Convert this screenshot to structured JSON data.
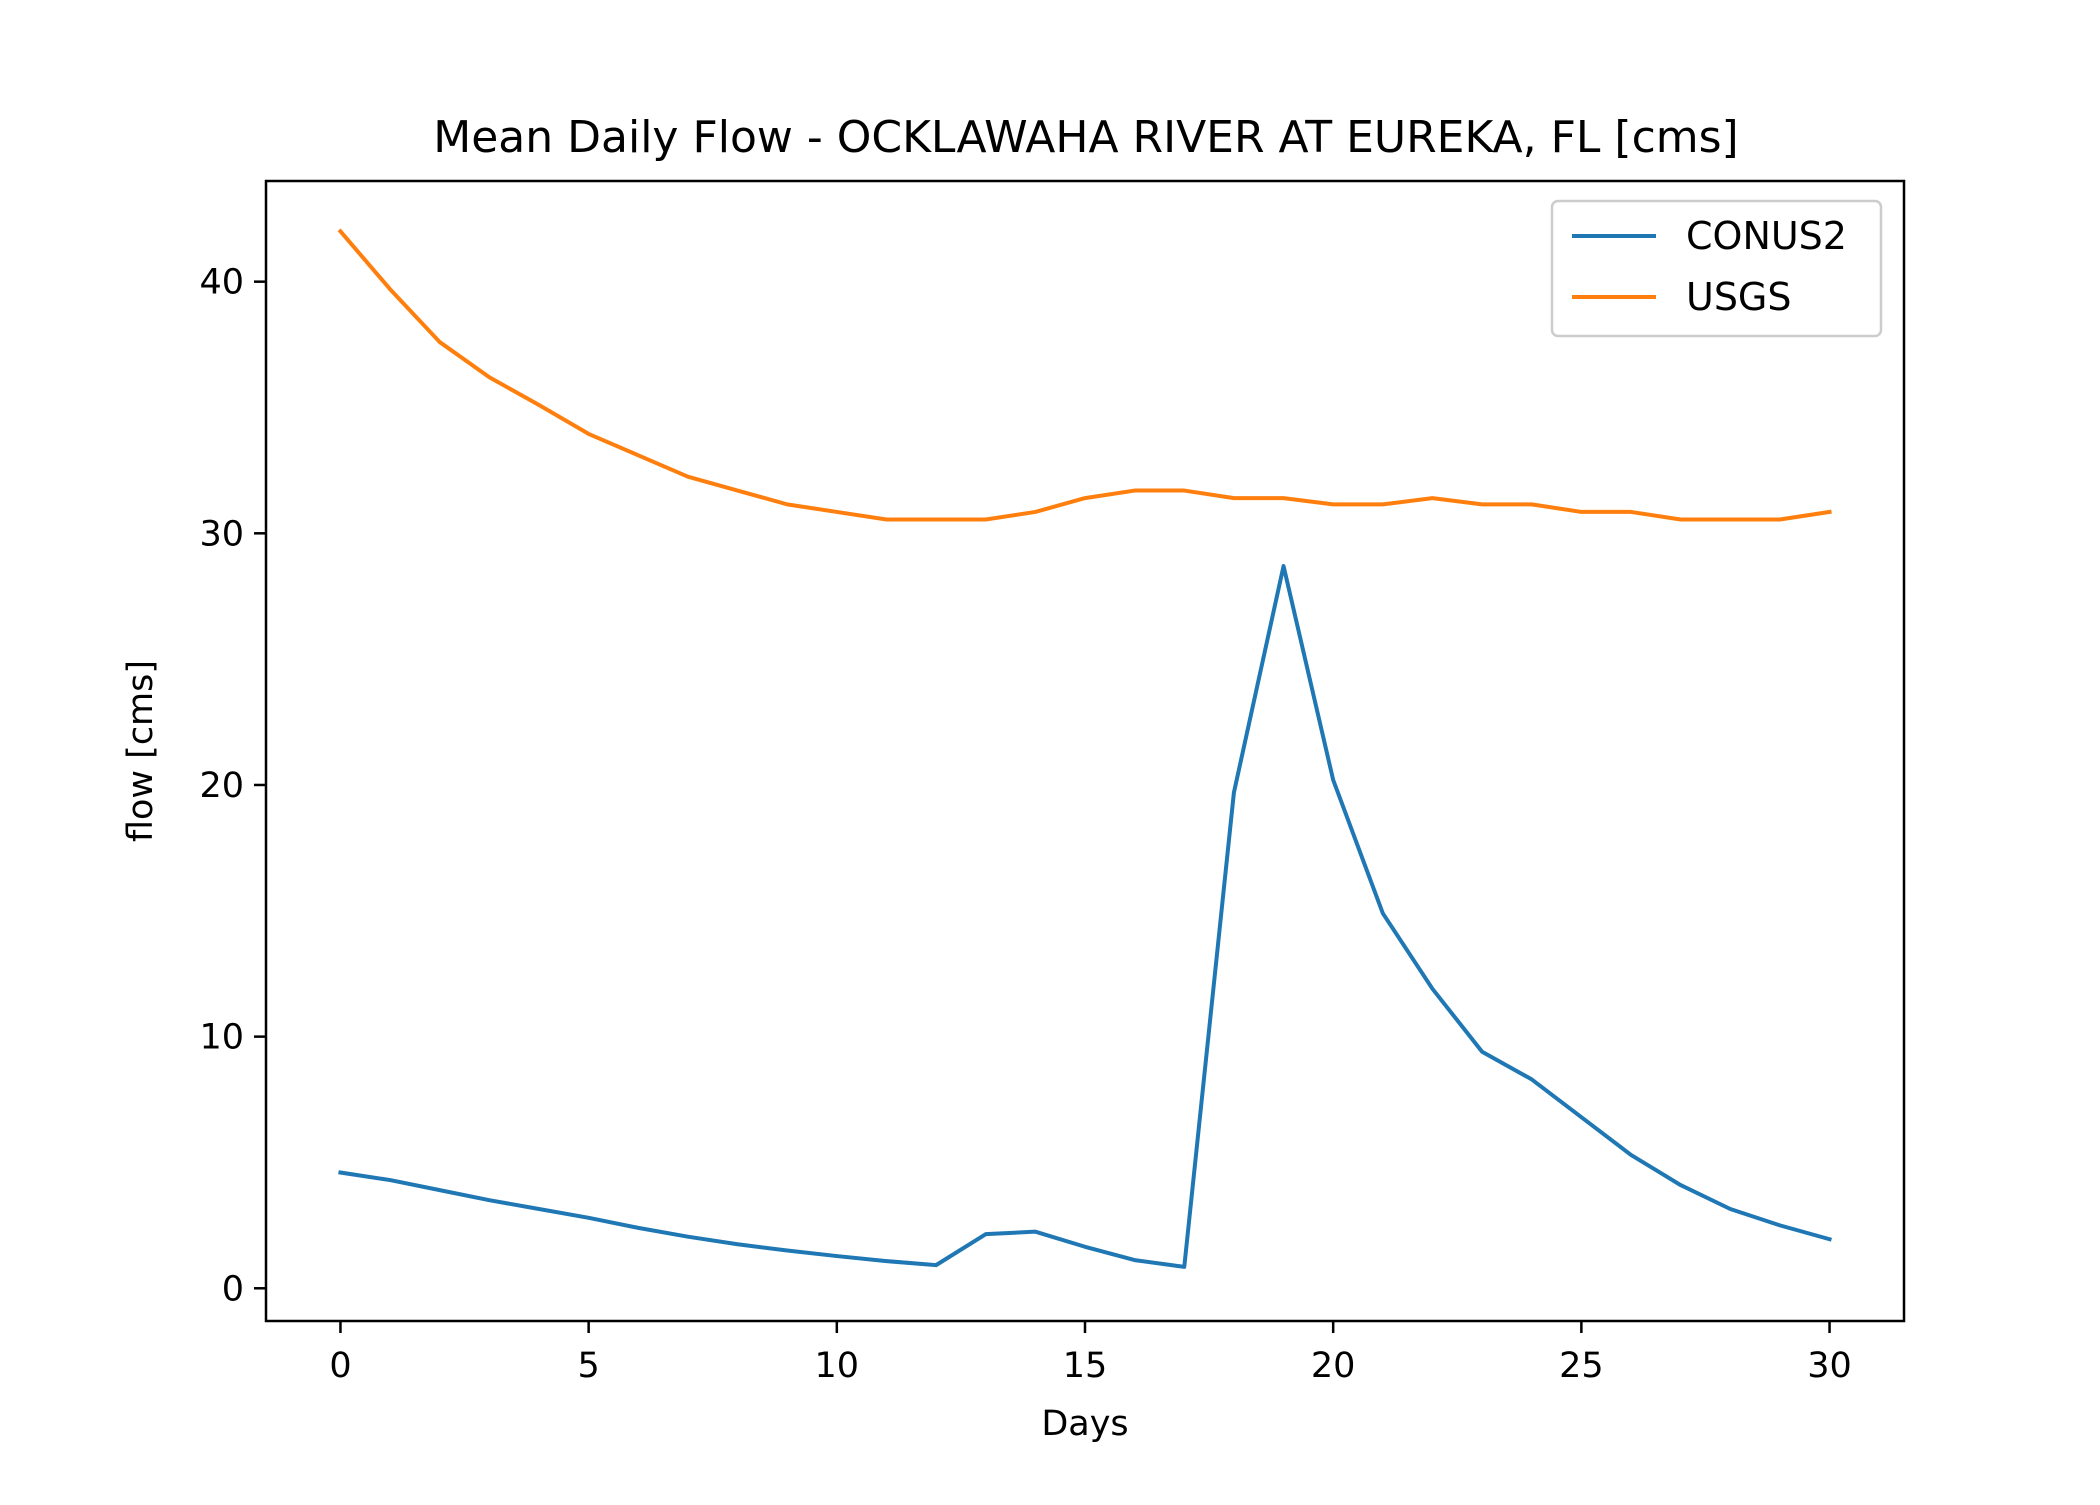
{
  "chart_data": {
    "type": "line",
    "title": "Mean Daily Flow - OCKLAWAHA RIVER AT EUREKA, FL [cms]",
    "xlabel": "Days",
    "ylabel": "flow [cms]",
    "xlim": [
      -1.5,
      31.5
    ],
    "ylim": [
      -1.3,
      44
    ],
    "xticks": [
      0,
      5,
      10,
      15,
      20,
      25,
      30
    ],
    "yticks": [
      0,
      10,
      20,
      30,
      40
    ],
    "grid": false,
    "legend": "top-right",
    "x": [
      0,
      1,
      2,
      3,
      4,
      5,
      6,
      7,
      8,
      9,
      10,
      11,
      12,
      13,
      14,
      15,
      16,
      17,
      18,
      19,
      20,
      21,
      22,
      23,
      24,
      25,
      26,
      27,
      28,
      29,
      30
    ],
    "series": [
      {
        "name": "CONUS2",
        "color": "#1f77b4",
        "values": [
          4.6,
          4.3,
          3.9,
          3.5,
          3.15,
          2.8,
          2.4,
          2.05,
          1.75,
          1.5,
          1.28,
          1.08,
          0.92,
          2.15,
          2.25,
          1.65,
          1.12,
          0.85,
          19.7,
          28.7,
          20.2,
          14.9,
          11.9,
          9.4,
          8.3,
          6.8,
          5.3,
          4.1,
          3.15,
          2.5,
          1.95
        ]
      },
      {
        "name": "USGS",
        "color": "#ff7f0e",
        "values": [
          42.0,
          39.7,
          37.6,
          36.2,
          35.1,
          33.95,
          33.1,
          32.25,
          31.7,
          31.15,
          30.85,
          30.55,
          30.55,
          30.55,
          30.85,
          31.4,
          31.7,
          31.7,
          31.4,
          31.4,
          31.15,
          31.15,
          31.4,
          31.15,
          31.15,
          30.85,
          30.85,
          30.55,
          30.55,
          30.55,
          30.85
        ]
      }
    ]
  }
}
